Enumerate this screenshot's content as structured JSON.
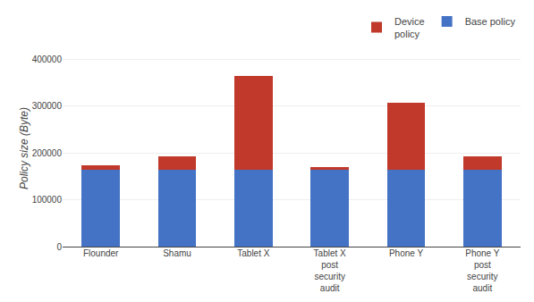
{
  "chart_data": {
    "type": "bar",
    "stacked": true,
    "categories": [
      "Flounder",
      "Shamu",
      "Tablet X",
      "Tablet X\npost\nsecurity\naudit",
      "Phone Y",
      "Phone Y\npost\nsecurity\naudit"
    ],
    "series": [
      {
        "name": "Base policy",
        "color": "#4472C4",
        "values": [
          165000,
          165000,
          165000,
          165000,
          165000,
          165000
        ]
      },
      {
        "name": "Device\npolicy",
        "color": "#C0392B",
        "values": [
          8000,
          28000,
          200000,
          5000,
          143000,
          27000
        ]
      }
    ],
    "ylabel": "Policy size (Byte)",
    "ylim": [
      0,
      420000
    ],
    "yticks": [
      0,
      100000,
      200000,
      300000,
      400000
    ],
    "grid": true,
    "legend": "upper right"
  }
}
